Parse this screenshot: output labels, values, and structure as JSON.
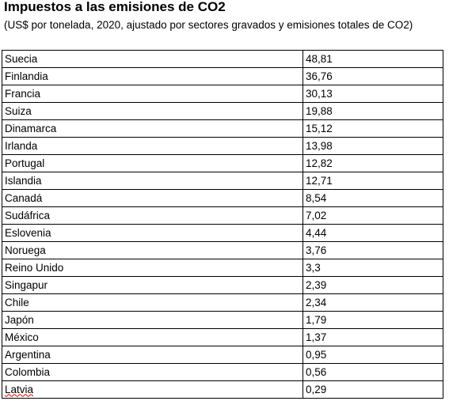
{
  "header": {
    "title": "Impuestos a las emisiones de CO2",
    "subtitle": "(US$ por tonelada, 2020, ajustado por sectores gravados y emisiones totales de CO2)"
  },
  "table": {
    "rows": [
      [
        "Suecia",
        "48,81"
      ],
      [
        "Finlandia",
        "36,76"
      ],
      [
        "Francia",
        "30,13"
      ],
      [
        "Suiza",
        "19,88"
      ],
      [
        "Dinamarca",
        "15,12"
      ],
      [
        "Irlanda",
        "13,98"
      ],
      [
        "Portugal",
        "12,82"
      ],
      [
        "Islandia",
        "12,71"
      ],
      [
        "Canadá",
        "8,54"
      ],
      [
        "Sudáfrica",
        "7,02"
      ],
      [
        "Eslovenia",
        "4,44"
      ],
      [
        "Noruega",
        "3,76"
      ],
      [
        "Reino Unido",
        "3,3"
      ],
      [
        "Singapur",
        "2,39"
      ],
      [
        "Chile",
        "2,34"
      ],
      [
        "Japón",
        "1,79"
      ],
      [
        "México",
        "1,37"
      ],
      [
        "Argentina",
        "0,95"
      ],
      [
        "Colombia",
        "0,56"
      ],
      [
        "Latvia",
        "0,29"
      ]
    ]
  }
}
